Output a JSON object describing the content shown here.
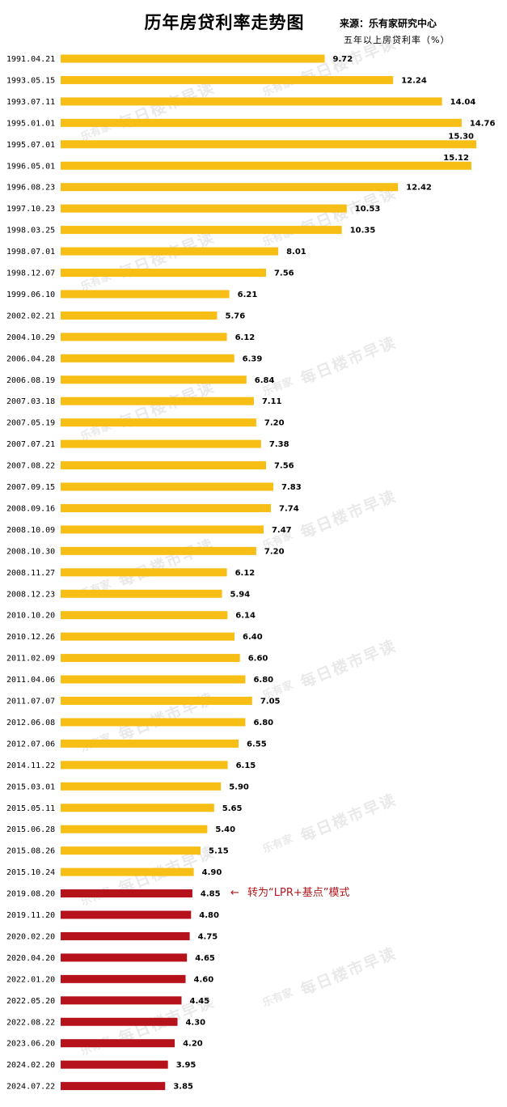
{
  "title": "历年房贷利率走势图",
  "source": "来源：乐有家研究中心",
  "unit": "五年以上房贷利率（%）",
  "watermark": {
    "text": "每日楼市早读",
    "logo": "乐有家"
  },
  "annotation": {
    "arrow": "←",
    "text": "转为“LPR+基点”模式"
  },
  "colors": {
    "benchmark": "#F7BE16",
    "lpr": "#B5121B"
  },
  "chart_data": {
    "type": "bar",
    "orientation": "horizontal",
    "title": "历年房贷利率走势图",
    "xlim": [
      0,
      15.3
    ],
    "grid": false,
    "categories": [
      "1991.04.21",
      "1993.05.15",
      "1993.07.11",
      "1995.01.01",
      "1995.07.01",
      "1996.05.01",
      "1996.08.23",
      "1997.10.23",
      "1998.03.25",
      "1998.07.01",
      "1998.12.07",
      "1999.06.10",
      "2002.02.21",
      "2004.10.29",
      "2006.04.28",
      "2006.08.19",
      "2007.03.18",
      "2007.05.19",
      "2007.07.21",
      "2007.08.22",
      "2007.09.15",
      "2008.09.16",
      "2008.10.09",
      "2008.10.30",
      "2008.11.27",
      "2008.12.23",
      "2010.10.20",
      "2010.12.26",
      "2011.02.09",
      "2011.04.06",
      "2011.07.07",
      "2012.06.08",
      "2012.07.06",
      "2014.11.22",
      "2015.03.01",
      "2015.05.11",
      "2015.06.28",
      "2015.08.26",
      "2015.10.24",
      "2019.08.20",
      "2019.11.20",
      "2020.02.20",
      "2020.04.20",
      "2022.01.20",
      "2022.05.20",
      "2022.08.22",
      "2023.06.20",
      "2024.02.20",
      "2024.07.22"
    ],
    "labels": [
      "9.72",
      "12.24",
      "14.04",
      "14.76",
      "15.30",
      "15.12",
      "12.42",
      "10.53",
      "10.35",
      "8.01",
      "7.56",
      "6.21",
      "5.76",
      "6.12",
      "6.39",
      "6.84",
      "7.11",
      "7.20",
      "7.38",
      "7.56",
      "7.83",
      "7.74",
      "7.47",
      "7.20",
      "6.12",
      "5.94",
      "6.14",
      "6.40",
      "6.60",
      "6.80",
      "7.05",
      "6.80",
      "6.55",
      "6.15",
      "5.90",
      "5.65",
      "5.40",
      "5.15",
      "4.90",
      "4.85",
      "4.80",
      "4.75",
      "4.65",
      "4.60",
      "4.45",
      "4.30",
      "4.20",
      "3.95",
      "3.85"
    ],
    "values": [
      9.72,
      12.24,
      14.04,
      14.76,
      15.3,
      15.12,
      12.42,
      10.53,
      10.35,
      8.01,
      7.56,
      6.21,
      5.76,
      6.12,
      6.39,
      6.84,
      7.11,
      7.2,
      7.38,
      7.56,
      7.83,
      7.74,
      7.47,
      7.2,
      6.12,
      5.94,
      6.14,
      6.4,
      6.6,
      6.8,
      7.05,
      6.8,
      6.55,
      6.15,
      5.9,
      5.65,
      5.4,
      5.15,
      4.9,
      4.85,
      4.8,
      4.75,
      4.65,
      4.6,
      4.45,
      4.3,
      4.2,
      3.95,
      3.85
    ],
    "lpr_start_index": 39
  }
}
